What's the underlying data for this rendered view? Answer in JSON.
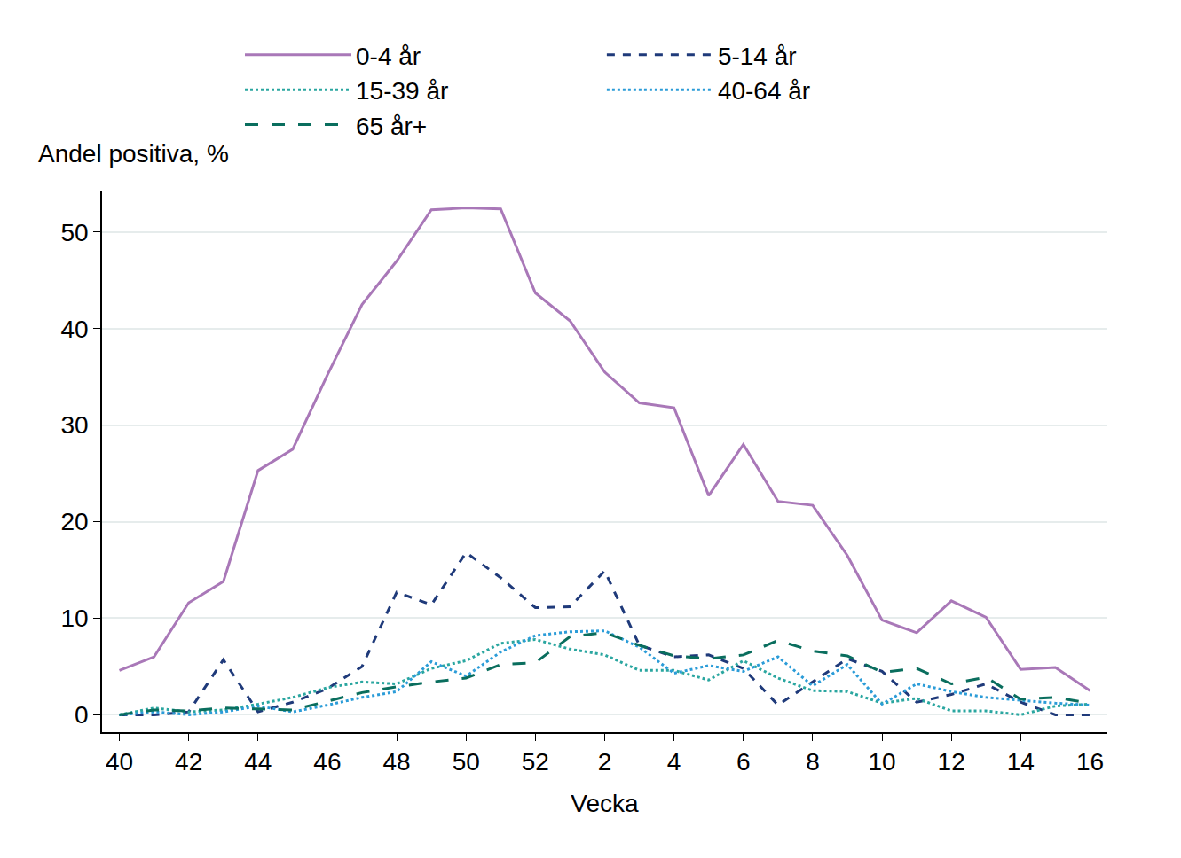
{
  "chart_data": {
    "type": "line",
    "x_label": "Vecka",
    "y_label": "Andel positiva, %",
    "categories": [
      "40",
      null,
      "42",
      null,
      "44",
      null,
      "46",
      null,
      "48",
      null,
      "50",
      null,
      "52",
      null,
      "2",
      null,
      "4",
      null,
      "6",
      null,
      "8",
      null,
      "10",
      null,
      "12",
      null,
      "14",
      null,
      "16"
    ],
    "ylim": [
      -1.8,
      54.3
    ],
    "yticks": [
      0,
      10,
      20,
      30,
      40,
      50
    ],
    "grid": true,
    "legend": "top",
    "series": [
      {
        "name": "0-4 år",
        "color": "#a978b8",
        "line_style": "solid",
        "values": [
          4.6,
          6,
          11.6,
          13.8,
          25.3,
          27.5,
          35.2,
          42.5,
          47,
          52.3,
          52.5,
          52.4,
          43.7,
          40.8,
          35.5,
          32.3,
          31.8,
          22.7,
          28,
          22.1,
          21.7,
          16.5,
          9.8,
          8.5,
          11.8,
          10.1,
          4.7,
          4.9,
          2.5
        ]
      },
      {
        "name": "5-14 år",
        "color": "#1f3a7a",
        "line_style": "dash",
        "values": [
          0,
          0,
          0.3,
          5.7,
          0.3,
          1.3,
          2.7,
          5,
          12.7,
          11.4,
          16.8,
          14.2,
          11.1,
          11.2,
          14.9,
          7.2,
          6,
          6.2,
          4.8,
          1,
          3.4,
          5.8,
          4.5,
          1.3,
          2.1,
          3.2,
          1.3,
          0,
          0
        ]
      },
      {
        "name": "15-39 år",
        "color": "#2aa6a0",
        "line_style": "dot",
        "values": [
          0,
          0.7,
          0.3,
          0.5,
          1.1,
          1.8,
          2.8,
          3.4,
          3.2,
          4.8,
          5.6,
          7.4,
          7.8,
          6.8,
          6.2,
          4.6,
          4.6,
          3.6,
          5.6,
          3.8,
          2.5,
          2.4,
          1.2,
          1.7,
          0.4,
          0.4,
          0,
          0.9,
          1.1
        ]
      },
      {
        "name": "40-64 år",
        "color": "#2b9cd8",
        "line_style": "dot",
        "values": [
          0,
          0.3,
          0,
          0.3,
          0.9,
          0.3,
          1,
          1.8,
          2.4,
          5.5,
          4,
          6.5,
          8.2,
          8.6,
          8.7,
          7,
          4.3,
          5.1,
          4.5,
          6,
          3,
          5.2,
          1.1,
          3.2,
          2.4,
          1.8,
          1.5,
          1.2,
          1
        ]
      },
      {
        "name": "65 år+",
        "color": "#0a6e5e",
        "line_style": "longdash",
        "values": [
          0,
          0.5,
          0.4,
          0.7,
          0.6,
          0.5,
          1.4,
          2.3,
          2.9,
          3.4,
          3.8,
          5.2,
          5.4,
          8.1,
          8.5,
          7.2,
          6.1,
          5.8,
          6.2,
          7.7,
          6.6,
          6.1,
          4.4,
          4.8,
          3.2,
          3.9,
          1.6,
          1.8,
          1.2
        ]
      }
    ]
  }
}
